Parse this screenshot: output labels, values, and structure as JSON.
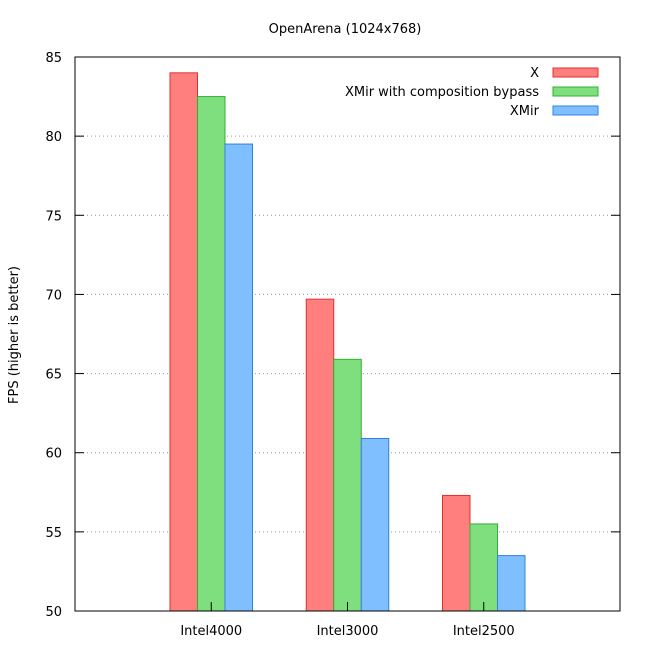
{
  "chart_data": {
    "type": "bar",
    "title": "OpenArena (1024x768)",
    "xlabel": "",
    "ylabel": "FPS (higher is better)",
    "ylim": [
      50,
      85
    ],
    "yticks": [
      50,
      55,
      60,
      65,
      70,
      75,
      80,
      85
    ],
    "grid": true,
    "legend_position": "top-right",
    "categories": [
      "Intel4000",
      "Intel3000",
      "Intel2500"
    ],
    "series": [
      {
        "name": "X",
        "color": "#ff7f7f",
        "stroke": "#e03030",
        "values": [
          84.0,
          69.7,
          57.3
        ]
      },
      {
        "name": "XMir with composition bypass",
        "color": "#7fdf7f",
        "stroke": "#30b030",
        "values": [
          82.5,
          65.9,
          55.5
        ]
      },
      {
        "name": "XMir",
        "color": "#7fbfff",
        "stroke": "#3080e0",
        "values": [
          79.5,
          60.9,
          53.5
        ]
      }
    ]
  }
}
